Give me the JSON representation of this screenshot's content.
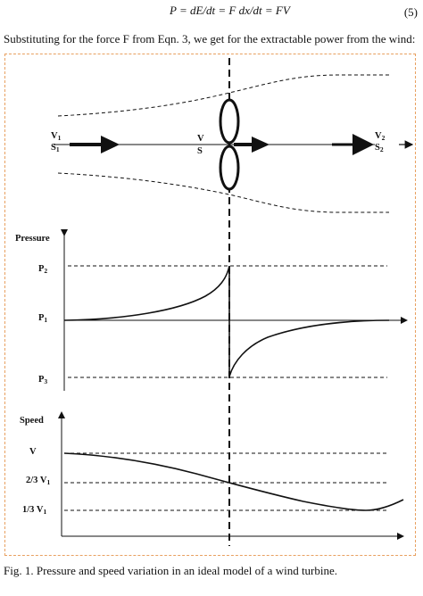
{
  "equation": {
    "text": "P = dE/dt = F dx/dt = FV",
    "number": "(5)"
  },
  "intro_text": "Substituting for the force F from Eqn. 3, we get for the extractable power from the wind:",
  "figure": {
    "top_panel": {
      "upstream": {
        "label_v": "V",
        "sub_v": "1",
        "label_s": "S",
        "sub_s": "1"
      },
      "rotor": {
        "label_v": "V",
        "label_s": "S"
      },
      "downstream": {
        "label_v": "V",
        "sub_v": "2",
        "label_s": "S",
        "sub_s": "2"
      }
    },
    "pressure_panel": {
      "axis_title": "Pressure",
      "ticks": [
        {
          "label": "P",
          "sub": "2"
        },
        {
          "label": "P",
          "sub": "1"
        },
        {
          "label": "P",
          "sub": "3"
        }
      ]
    },
    "speed_panel": {
      "axis_title": "Speed",
      "ticks": [
        {
          "label": "V",
          "sub": ""
        },
        {
          "label": "2/3 V",
          "sub": "1"
        },
        {
          "label": "1/3 V",
          "sub": "1"
        }
      ]
    }
  },
  "caption": "Fig. 1. Pressure and speed variation in an ideal model of a wind turbine."
}
